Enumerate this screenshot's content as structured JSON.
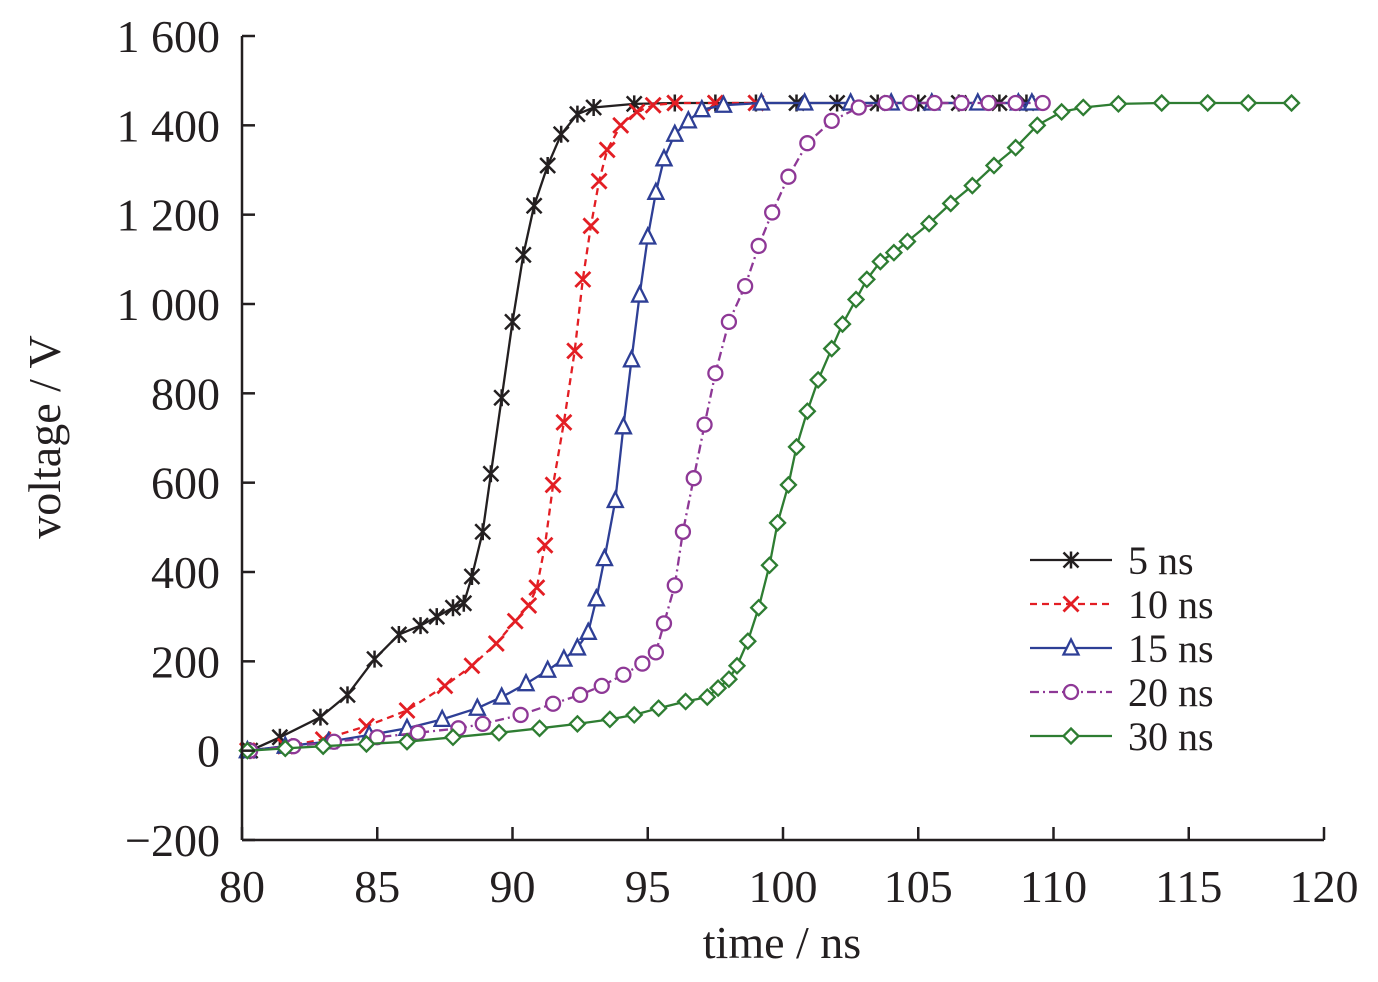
{
  "chart_data": {
    "type": "line",
    "title": "",
    "xlabel": "time / ns",
    "ylabel": "voltage / V",
    "xlim": [
      80,
      120
    ],
    "ylim": [
      -200,
      1600
    ],
    "xticks": [
      80,
      85,
      90,
      95,
      100,
      105,
      110,
      115,
      120
    ],
    "xtick_labels": [
      "80",
      "85",
      "90",
      "95",
      "100",
      "105",
      "110",
      "115",
      "120"
    ],
    "yticks": [
      -200,
      0,
      200,
      400,
      600,
      800,
      1000,
      1200,
      1400,
      1600
    ],
    "ytick_labels": [
      "−200",
      "0",
      "200",
      "400",
      "600",
      "800",
      "1 000",
      "1 200",
      "1 400",
      "1 600"
    ],
    "grid": false,
    "legend_position": "lower-right",
    "series": [
      {
        "name": "5 ns",
        "color": "#231f20",
        "marker": "asterisk",
        "dash": "solid",
        "x": [
          80.3,
          81.4,
          82.9,
          83.9,
          84.9,
          85.8,
          86.6,
          87.2,
          87.8,
          88.2,
          88.5,
          88.9,
          89.2,
          89.6,
          90.0,
          90.4,
          90.8,
          91.3,
          91.8,
          92.4,
          93.0,
          94.5,
          96.0,
          97.5,
          99.0,
          100.5,
          102.0,
          103.5,
          105.0,
          106.5,
          108.0,
          109.0
        ],
        "y": [
          0,
          30,
          75,
          125,
          205,
          260,
          280,
          300,
          320,
          330,
          390,
          490,
          620,
          790,
          960,
          1110,
          1220,
          1310,
          1380,
          1425,
          1440,
          1448,
          1450,
          1450,
          1450,
          1450,
          1450,
          1450,
          1450,
          1450,
          1450,
          1450
        ]
      },
      {
        "name": "10 ns",
        "color": "#e31e24",
        "marker": "x",
        "dash": "short-dash",
        "x": [
          80.2,
          81.6,
          83.0,
          84.6,
          86.1,
          87.5,
          88.5,
          89.4,
          90.1,
          90.6,
          90.9,
          91.2,
          91.5,
          91.9,
          92.3,
          92.6,
          92.9,
          93.2,
          93.5,
          94.0,
          94.6,
          95.2,
          96.0,
          97.5,
          99.0
        ],
        "y": [
          0,
          10,
          25,
          55,
          90,
          145,
          190,
          240,
          290,
          325,
          365,
          460,
          595,
          735,
          895,
          1055,
          1175,
          1275,
          1345,
          1400,
          1430,
          1445,
          1450,
          1450,
          1450
        ]
      },
      {
        "name": "15 ns",
        "color": "#2e3f96",
        "marker": "triangle",
        "dash": "solid",
        "x": [
          80.2,
          81.6,
          83.2,
          84.7,
          86.1,
          87.4,
          88.7,
          89.6,
          90.5,
          91.3,
          91.9,
          92.4,
          92.8,
          93.1,
          93.4,
          93.8,
          94.1,
          94.4,
          94.7,
          95.0,
          95.3,
          95.6,
          96.0,
          96.5,
          97.0,
          97.8,
          99.2,
          100.8,
          102.5,
          104.0,
          105.5,
          107.2,
          108.7,
          109.2
        ],
        "y": [
          0,
          10,
          20,
          35,
          50,
          70,
          95,
          120,
          150,
          180,
          205,
          230,
          265,
          340,
          430,
          560,
          725,
          875,
          1020,
          1150,
          1250,
          1325,
          1380,
          1410,
          1435,
          1445,
          1450,
          1450,
          1450,
          1450,
          1450,
          1450,
          1450,
          1450
        ]
      },
      {
        "name": "20 ns",
        "color": "#8e3896",
        "marker": "circle",
        "dash": "dash-dot",
        "x": [
          80.3,
          81.9,
          83.4,
          85.0,
          86.5,
          88.0,
          88.9,
          90.3,
          91.5,
          92.5,
          93.3,
          94.1,
          94.8,
          95.3,
          95.6,
          96.0,
          96.3,
          96.7,
          97.1,
          97.5,
          98.0,
          98.6,
          99.1,
          99.6,
          100.2,
          100.9,
          101.8,
          102.8,
          103.8,
          104.7,
          105.6,
          106.6,
          107.6,
          108.6,
          109.6
        ],
        "y": [
          0,
          10,
          20,
          30,
          40,
          50,
          60,
          80,
          105,
          125,
          145,
          170,
          195,
          220,
          285,
          370,
          490,
          610,
          730,
          845,
          960,
          1040,
          1130,
          1205,
          1285,
          1360,
          1410,
          1440,
          1450,
          1450,
          1450,
          1450,
          1450,
          1450,
          1450
        ]
      },
      {
        "name": "30 ns",
        "color": "#2e7d32",
        "marker": "diamond",
        "dash": "solid",
        "x": [
          80.2,
          81.6,
          83.0,
          84.6,
          86.1,
          87.8,
          89.5,
          91.0,
          92.4,
          93.6,
          94.5,
          95.4,
          96.4,
          97.2,
          97.6,
          98.0,
          98.3,
          98.7,
          99.1,
          99.5,
          99.8,
          100.2,
          100.5,
          100.9,
          101.3,
          101.8,
          102.2,
          102.7,
          103.1,
          103.6,
          104.1,
          104.6,
          105.4,
          106.2,
          107.0,
          107.8,
          108.6,
          109.4,
          110.3,
          111.1,
          112.4,
          114.0,
          115.7,
          117.2,
          118.8
        ],
        "y": [
          0,
          5,
          10,
          15,
          20,
          30,
          40,
          50,
          60,
          70,
          80,
          95,
          110,
          120,
          140,
          160,
          190,
          245,
          320,
          415,
          510,
          595,
          680,
          760,
          830,
          900,
          955,
          1010,
          1055,
          1095,
          1115,
          1140,
          1180,
          1225,
          1265,
          1310,
          1350,
          1400,
          1430,
          1440,
          1448,
          1450,
          1450,
          1450,
          1450
        ]
      }
    ]
  }
}
